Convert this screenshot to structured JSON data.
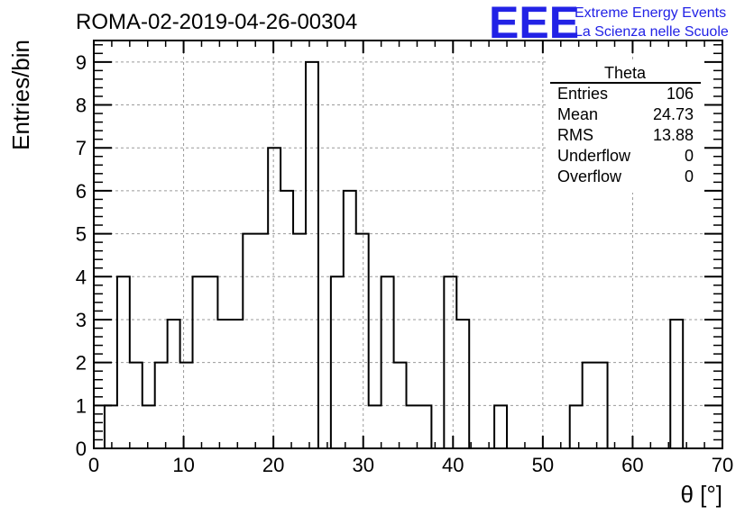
{
  "title": "ROMA-02-2019-04-26-00304",
  "logo": {
    "mark": "EEE",
    "line1": "Extreme Energy Events",
    "line2": "La Scienza nelle Scuole",
    "color": "#2222e6"
  },
  "stats": {
    "header": "Theta",
    "rows": [
      {
        "label": "Entries",
        "value": "106"
      },
      {
        "label": "Mean",
        "value": "24.73"
      },
      {
        "label": "RMS",
        "value": "13.88"
      },
      {
        "label": "Underflow",
        "value": "0"
      },
      {
        "label": "Overflow",
        "value": "0"
      }
    ]
  },
  "chart_data": {
    "type": "bar",
    "title": "ROMA-02-2019-04-26-00304",
    "xlabel": "θ [°]",
    "ylabel": "Entries/bin",
    "xlim": [
      0,
      70
    ],
    "ylim": [
      0,
      9.5
    ],
    "grid": true,
    "x_ticks": [
      0,
      10,
      20,
      30,
      40,
      50,
      60,
      70
    ],
    "y_ticks": [
      0,
      1,
      2,
      3,
      4,
      5,
      6,
      7,
      8,
      9
    ],
    "bin_edges": [
      1.2,
      2.6,
      4.0,
      5.4,
      6.8,
      8.2,
      9.6,
      11.0,
      12.4,
      13.8,
      15.2,
      16.6,
      18.0,
      19.4,
      20.8,
      22.2,
      23.6,
      25.0,
      26.4,
      27.8,
      29.2,
      30.6,
      32.0,
      33.4,
      34.8,
      36.2,
      37.6,
      39.0,
      40.4,
      41.8,
      43.2,
      44.6,
      46.0,
      47.4,
      48.8,
      50.2,
      51.6,
      53.0,
      54.4,
      55.8,
      57.2,
      58.6,
      60.0,
      61.4,
      62.8,
      64.2,
      65.6
    ],
    "values": [
      1,
      4,
      2,
      1,
      2,
      3,
      2,
      4,
      4,
      3,
      3,
      5,
      5,
      7,
      6,
      5,
      9,
      0,
      4,
      6,
      5,
      1,
      4,
      2,
      1,
      1,
      0,
      4,
      3,
      0,
      0,
      1,
      0,
      0,
      0,
      0,
      0,
      1,
      2,
      2,
      0,
      0,
      0,
      0,
      0,
      3
    ]
  }
}
